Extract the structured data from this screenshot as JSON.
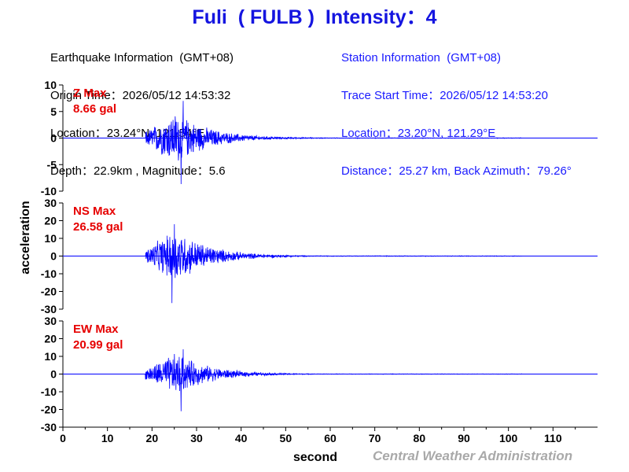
{
  "title": {
    "station": "Fuli",
    "code": "( FULB )",
    "intensity_label": "Intensity：4"
  },
  "earthquake_info": {
    "heading": "Earthquake Information  (GMT+08)",
    "origin_time": "Origin Time：2026/05/12 14:53:32",
    "location": "Location：23.24°N, 121.54°E",
    "depth_magnitude": "Depth：22.9km , Magnitude：5.6"
  },
  "station_info": {
    "heading": "Station Information  (GMT+08)",
    "trace_start": "Trace Start Time：2026/05/12 14:53:20",
    "location": "Location：23.20°N, 121.29°E",
    "distance": "Distance：25.27 km, Back Azimuth：79.26°"
  },
  "credit": "Central Weather Administration",
  "colors": {
    "trace": "#0000ff",
    "label": "#e60000",
    "axis": "#000000",
    "credit": "#a9a9a9"
  },
  "chart_data": {
    "type": "line",
    "xlabel": "second",
    "ylabel": "acceleration",
    "xlim": [
      0,
      120
    ],
    "xticks": [
      0,
      10,
      20,
      30,
      40,
      50,
      60,
      70,
      80,
      90,
      100,
      110
    ],
    "grid": false,
    "legend": "none",
    "signal": {
      "p_arrival_s": 18.5,
      "peak_time_s": 25.5,
      "trace_end_s": 103
    },
    "panels": [
      {
        "component": "Z",
        "label": "Z Max",
        "max_text": "8.66 gal",
        "max_gal": 8.66,
        "ylim": [
          -10,
          10
        ],
        "yticks": [
          10,
          5,
          0,
          -5,
          -10
        ],
        "extremes": {
          "pos": 7,
          "neg": -8.66,
          "at_s": 26.5
        }
      },
      {
        "component": "NS",
        "label": "NS Max",
        "max_text": "26.58 gal",
        "max_gal": 26.58,
        "ylim": [
          -30,
          30
        ],
        "yticks": [
          30,
          20,
          10,
          0,
          -10,
          -20,
          -30
        ],
        "extremes": {
          "pos": 18,
          "neg": -26.58,
          "at_s": 24.5
        }
      },
      {
        "component": "EW",
        "label": "EW Max",
        "max_text": "20.99 gal",
        "max_gal": 20.99,
        "ylim": [
          -30,
          30
        ],
        "yticks": [
          30,
          20,
          10,
          0,
          -10,
          -20,
          -30
        ],
        "extremes": {
          "pos": 14,
          "neg": -20.99,
          "at_s": 26.5
        }
      }
    ]
  }
}
